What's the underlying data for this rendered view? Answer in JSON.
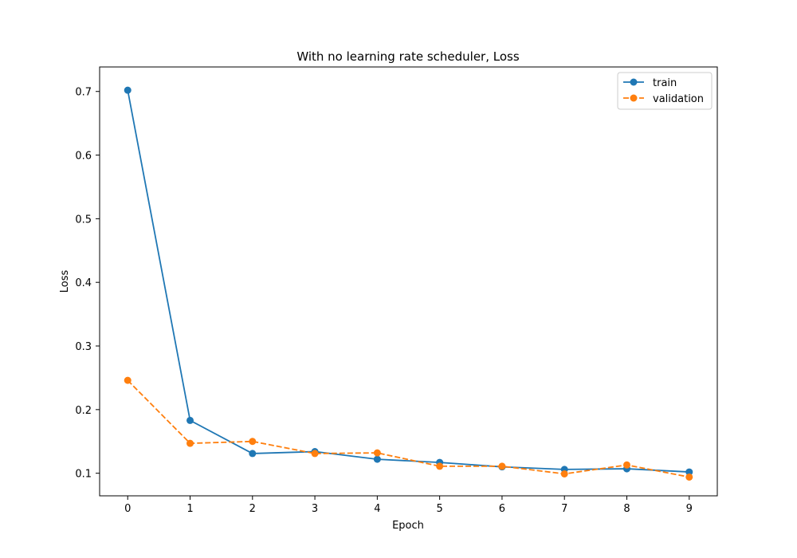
{
  "chart_data": {
    "type": "line",
    "title": "With no learning rate scheduler, Loss",
    "xlabel": "Epoch",
    "ylabel": "Loss",
    "x": [
      0,
      1,
      2,
      3,
      4,
      5,
      6,
      7,
      8,
      9
    ],
    "xlim": [
      -0.45,
      9.45
    ],
    "ylim": [
      0.0645,
      0.7385
    ],
    "xticks": [
      "0",
      "1",
      "2",
      "3",
      "4",
      "5",
      "6",
      "7",
      "8",
      "9"
    ],
    "yticks": [
      {
        "value": 0.1,
        "label": "0.1"
      },
      {
        "value": 0.2,
        "label": "0.2"
      },
      {
        "value": 0.3,
        "label": "0.3"
      },
      {
        "value": 0.4,
        "label": "0.4"
      },
      {
        "value": 0.5,
        "label": "0.5"
      },
      {
        "value": 0.6,
        "label": "0.6"
      },
      {
        "value": 0.7,
        "label": "0.7"
      }
    ],
    "grid": false,
    "legend_position": "top-right",
    "series": [
      {
        "name": "train",
        "color": "#1f77b4",
        "line_style": "solid",
        "marker": "circle",
        "values": [
          0.702,
          0.183,
          0.131,
          0.134,
          0.122,
          0.117,
          0.11,
          0.106,
          0.107,
          0.102
        ]
      },
      {
        "name": "validation",
        "color": "#ff7f0e",
        "line_style": "dashed",
        "marker": "circle",
        "values": [
          0.246,
          0.147,
          0.15,
          0.131,
          0.132,
          0.111,
          0.111,
          0.099,
          0.113,
          0.094
        ]
      }
    ]
  }
}
